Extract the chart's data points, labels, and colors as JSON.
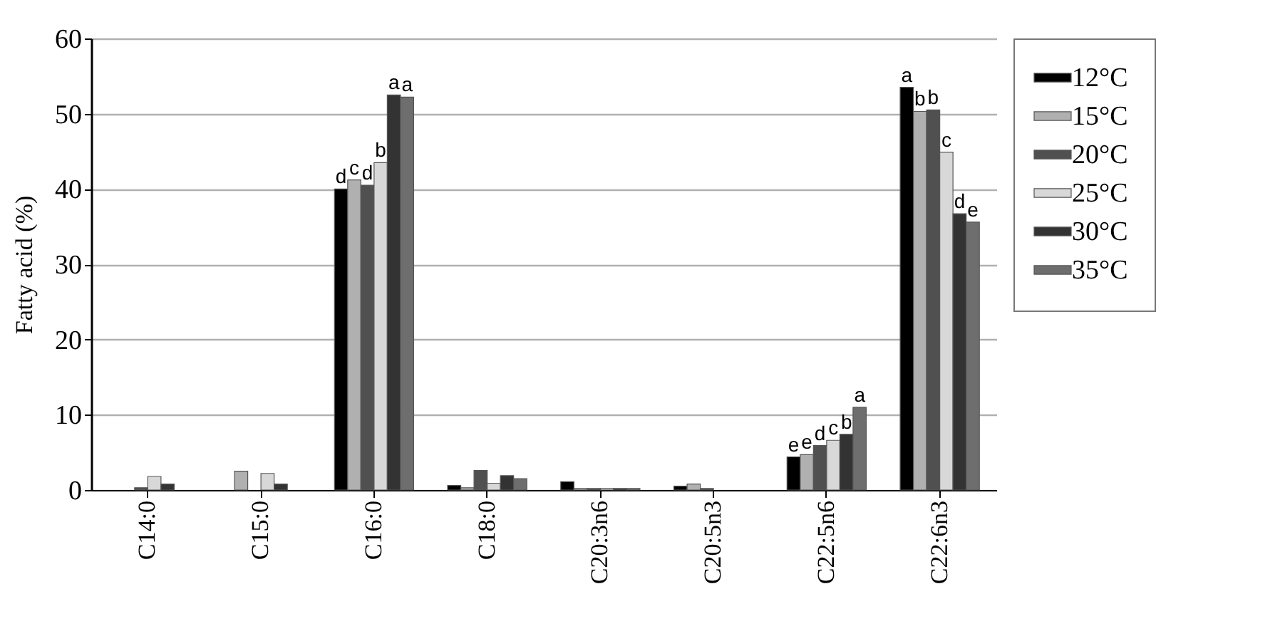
{
  "chart_data": {
    "type": "bar",
    "ylabel": "Fatty acid (%)",
    "categories": [
      "C14:0",
      "C15:0",
      "C16:0",
      "C18:0",
      "C20:3n6",
      "C20:5n3",
      "C22:5n6",
      "C22:6n3"
    ],
    "series": [
      {
        "name": "12°C",
        "color": "#000000",
        "values": [
          null,
          null,
          40,
          0.6,
          1.1,
          0.5,
          4.4,
          53.5
        ],
        "value_labels": [
          null,
          null,
          "d",
          null,
          null,
          null,
          "e",
          "a"
        ]
      },
      {
        "name": "15°C",
        "color": "#b0b0b0",
        "values": [
          null,
          2.5,
          41.2,
          0.3,
          0.2,
          0.8,
          4.7,
          50.3
        ],
        "value_labels": [
          null,
          null,
          "c",
          null,
          null,
          null,
          "e",
          "b"
        ]
      },
      {
        "name": "20°C",
        "color": "#505050",
        "values": [
          0.3,
          null,
          40.5,
          2.6,
          0.2,
          0.2,
          5.9,
          50.5
        ],
        "value_labels": [
          null,
          null,
          "d",
          null,
          null,
          null,
          "d",
          "b"
        ]
      },
      {
        "name": "25°C",
        "color": "#d8d8d8",
        "values": [
          1.8,
          2.2,
          43.5,
          0.9,
          0.2,
          null,
          6.6,
          44.9
        ],
        "value_labels": [
          null,
          null,
          "b",
          null,
          null,
          null,
          "c",
          "c"
        ]
      },
      {
        "name": "30°C",
        "color": "#333333",
        "values": [
          0.8,
          0.8,
          52.5,
          1.9,
          0.2,
          null,
          7.4,
          36.7
        ],
        "value_labels": [
          null,
          null,
          "a",
          null,
          null,
          null,
          "b",
          "d"
        ]
      },
      {
        "name": "35°C",
        "color": "#6e6e6e",
        "values": [
          null,
          null,
          52.2,
          1.5,
          0.2,
          null,
          11.0,
          35.6
        ],
        "value_labels": [
          null,
          null,
          "a",
          null,
          null,
          null,
          "a",
          "e"
        ]
      }
    ],
    "ylim": [
      0,
      60
    ],
    "yticks": [
      0,
      10,
      20,
      30,
      40,
      50,
      60
    ],
    "grid": "y",
    "legend": "right"
  }
}
